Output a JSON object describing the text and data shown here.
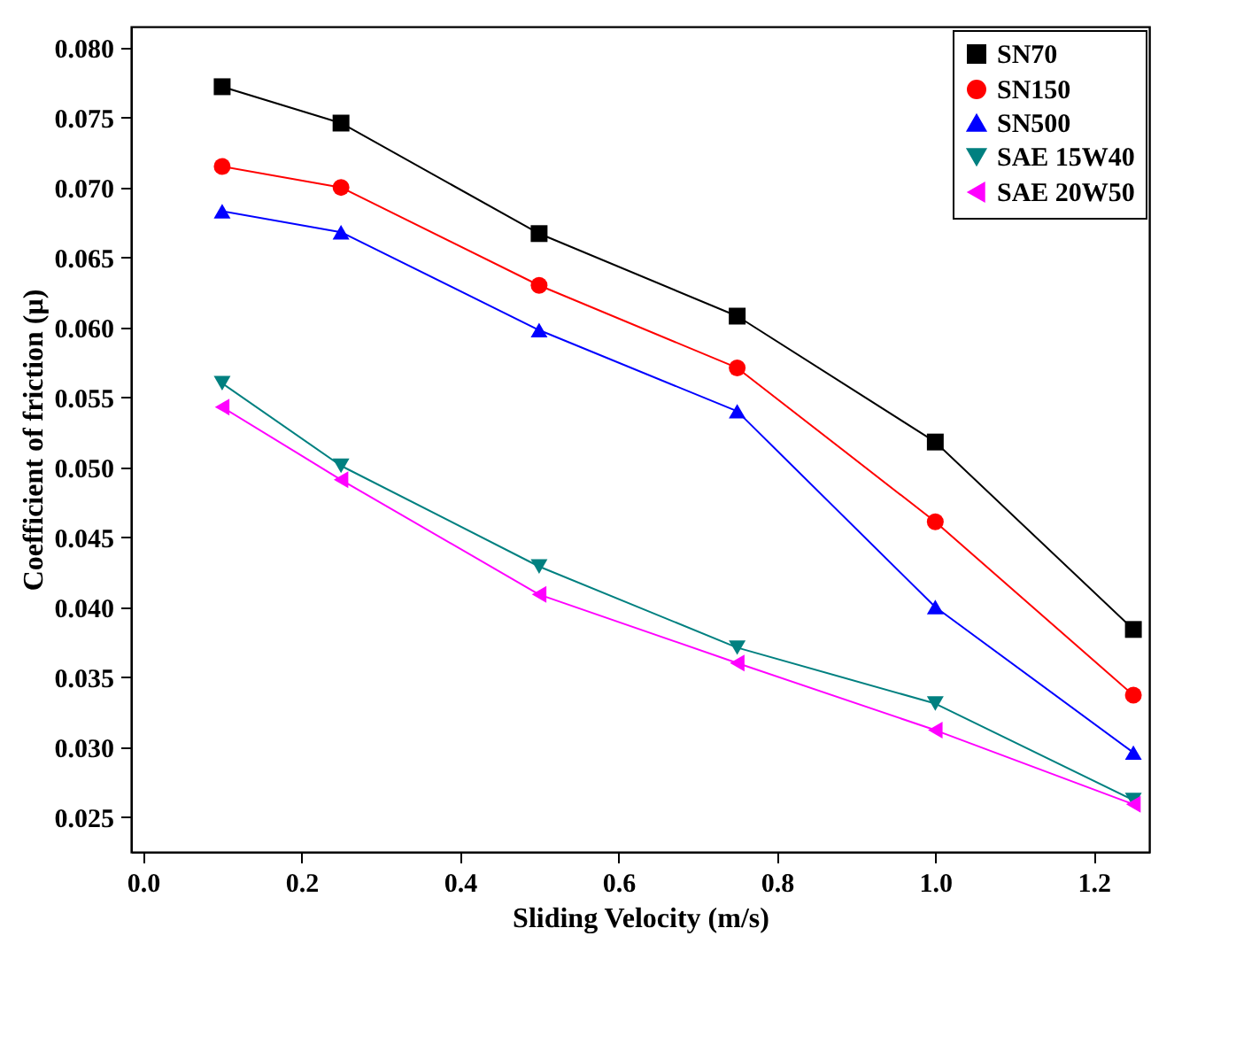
{
  "chart_data": {
    "type": "line",
    "xlabel": "Sliding Velocity (m/s)",
    "ylabel": "Coefficient of friction (μ)",
    "x": [
      0.1,
      0.25,
      0.5,
      0.75,
      1.0,
      1.25
    ],
    "series": [
      {
        "name": "SN70",
        "color": "#000000",
        "marker": "square",
        "values": [
          0.0772,
          0.0746,
          0.0667,
          0.0608,
          0.0518,
          0.0384
        ]
      },
      {
        "name": "SN150",
        "color": "#ff0000",
        "marker": "circle",
        "values": [
          0.0715,
          0.07,
          0.063,
          0.0571,
          0.0461,
          0.0337
        ]
      },
      {
        "name": "SN500",
        "color": "#0000ff",
        "marker": "triangle-up",
        "values": [
          0.0683,
          0.0668,
          0.0598,
          0.054,
          0.04,
          0.0296
        ]
      },
      {
        "name": "SAE 15W40",
        "color": "#008080",
        "marker": "triangle-down",
        "values": [
          0.056,
          0.0501,
          0.0429,
          0.0371,
          0.0331,
          0.0262
        ]
      },
      {
        "name": "SAE 20W50",
        "color": "#ff00ff",
        "marker": "triangle-left",
        "values": [
          0.0543,
          0.0491,
          0.0409,
          0.036,
          0.0312,
          0.0259
        ]
      }
    ],
    "xlim": [
      -0.015,
      1.27
    ],
    "ylim": [
      0.0225,
      0.0815
    ],
    "xticks": [
      {
        "value": 0,
        "label": "0.0"
      },
      {
        "value": 0.2,
        "label": "0.2"
      },
      {
        "value": 0.4,
        "label": "0.4"
      },
      {
        "value": 0.6,
        "label": "0.6"
      },
      {
        "value": 0.8,
        "label": "0.8"
      },
      {
        "value": 1.0,
        "label": "1.0"
      },
      {
        "value": 1.2,
        "label": "1.2"
      }
    ],
    "yticks": [
      {
        "value": 0.025,
        "label": "0.025"
      },
      {
        "value": 0.03,
        "label": "0.030"
      },
      {
        "value": 0.035,
        "label": "0.035"
      },
      {
        "value": 0.04,
        "label": "0.040"
      },
      {
        "value": 0.045,
        "label": "0.045"
      },
      {
        "value": 0.05,
        "label": "0.050"
      },
      {
        "value": 0.055,
        "label": "0.055"
      },
      {
        "value": 0.06,
        "label": "0.060"
      },
      {
        "value": 0.065,
        "label": "0.065"
      },
      {
        "value": 0.07,
        "label": "0.070"
      },
      {
        "value": 0.075,
        "label": "0.075"
      },
      {
        "value": 0.08,
        "label": "0.080"
      }
    ],
    "grid": false,
    "legend": "top right",
    "line_style": "solid"
  }
}
